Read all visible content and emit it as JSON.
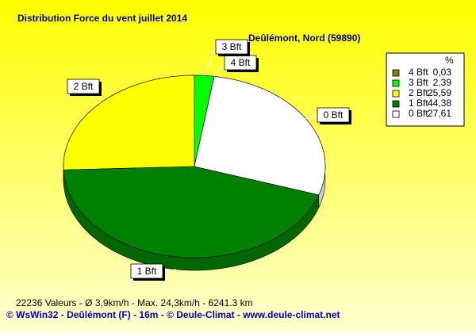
{
  "chart_data": {
    "type": "pie",
    "title": "Distribution Force du vent  juillet 2014",
    "subtitle": "Deûlémont, Nord (59890)",
    "categories": [
      "4 Bft",
      "3 Bft",
      "2 Bft",
      "1 Bft",
      "0 Bft"
    ],
    "values": [
      0.03,
      2.39,
      25.59,
      44.38,
      27.61
    ],
    "value_labels": [
      "0,03",
      "2,39",
      "25,59",
      "44,38",
      "27,61"
    ],
    "colors": [
      "#808000",
      "#00ff00",
      "#ffff00",
      "#008000",
      "#ffffff"
    ],
    "legend_title": "%",
    "legend": "top-right",
    "annotations": [
      "22236 Valeurs   -   Ø 3,9km/h  -  Max. 24,3km/h   -   6241.3 km",
      "© WsWin32  -  Deûlémont (F) - 16m  -  © Deule-Climat - www.deule-climat.net"
    ]
  }
}
